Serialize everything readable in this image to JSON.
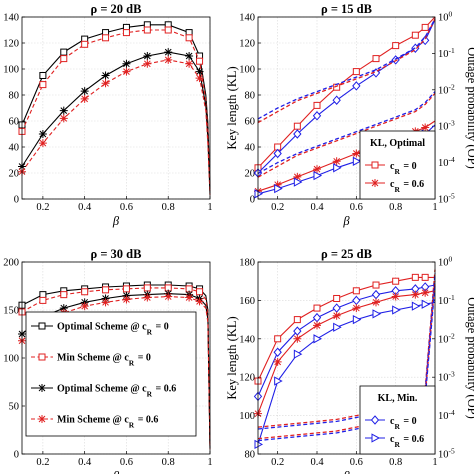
{
  "colors": {
    "black": "#000000",
    "red": "#e02020",
    "blue": "#1f1fe6"
  },
  "chart_data": [
    {
      "type": "line",
      "title": "ρ = 20 dB",
      "xlabel": "β",
      "ylabel": "",
      "xlim": [
        0.1,
        1.0
      ],
      "ylim": [
        0,
        140
      ],
      "xticks": [
        "0.2",
        "0.4",
        "0.6",
        "0.8",
        "1"
      ],
      "yticks": [
        "0",
        "20",
        "40",
        "60",
        "80",
        "100",
        "120",
        "140"
      ],
      "x": [
        0.1,
        0.2,
        0.3,
        0.4,
        0.5,
        0.6,
        0.7,
        0.8,
        0.9,
        0.95,
        0.98,
        0.99,
        1.0
      ],
      "series": [
        {
          "name": "Optimal Scheme @ cR = 0",
          "color": "#000000",
          "dash": false,
          "marker": "square",
          "values": [
            57,
            95,
            113,
            123,
            128,
            132,
            134,
            134,
            128,
            110,
            80,
            58,
            8
          ]
        },
        {
          "name": "Min Scheme @ cR = 0",
          "color": "#e02020",
          "dash": true,
          "marker": "square",
          "values": [
            52,
            88,
            108,
            119,
            124,
            128,
            130,
            130,
            124,
            106,
            76,
            54,
            6
          ]
        },
        {
          "name": "Optimal Scheme @ cR = 0.6",
          "color": "#000000",
          "dash": false,
          "marker": "star",
          "values": [
            25,
            50,
            68,
            83,
            95,
            104,
            110,
            113,
            110,
            98,
            72,
            46,
            4
          ]
        },
        {
          "name": "Min Scheme @ cR = 0.6",
          "color": "#e02020",
          "dash": true,
          "marker": "star",
          "values": [
            21,
            43,
            62,
            77,
            89,
            98,
            104,
            107,
            104,
            93,
            68,
            42,
            3
          ]
        }
      ]
    },
    {
      "type": "line",
      "title": "ρ = 15 dB",
      "xlabel": "β",
      "ylabel": "Key length (KL)",
      "ylabel_right": "Outage probability (OP)",
      "xlim": [
        0.1,
        1.0
      ],
      "ylim": [
        0,
        140
      ],
      "ylim_right_log": [
        -5,
        0
      ],
      "xticks": [
        "0.2",
        "0.4",
        "0.6",
        "0.8",
        "1"
      ],
      "yticks": [
        "0",
        "20",
        "40",
        "60",
        "80",
        "100",
        "120",
        "140"
      ],
      "yticks_right": [
        "10-5",
        "10-4",
        "10-3",
        "10-2",
        "10-1",
        "100"
      ],
      "legend": {
        "title": "KL, Optimal",
        "items": [
          "cR = 0",
          "cR = 0.6"
        ]
      },
      "x": [
        0.1,
        0.2,
        0.3,
        0.4,
        0.5,
        0.6,
        0.7,
        0.8,
        0.9,
        0.95,
        1.0
      ],
      "series": [
        {
          "name": "KL optimal cR = 0",
          "axis": "left",
          "color": "#e02020",
          "dash": false,
          "marker": "square",
          "values": [
            24,
            40,
            56,
            72,
            86,
            98,
            108,
            118,
            126,
            132,
            140
          ]
        },
        {
          "name": "KL min cR = 0",
          "axis": "left",
          "color": "#1f1fe6",
          "dash": false,
          "marker": "diamond",
          "values": [
            20,
            35,
            50,
            64,
            76,
            87,
            97,
            107,
            116,
            122,
            138
          ]
        },
        {
          "name": "KL optimal cR = 0.6",
          "axis": "left",
          "color": "#e02020",
          "dash": false,
          "marker": "star",
          "values": [
            6,
            11,
            17,
            23,
            29,
            35,
            41,
            47,
            52,
            55,
            60
          ]
        },
        {
          "name": "KL min cR = 0.6",
          "axis": "left",
          "color": "#1f1fe6",
          "dash": false,
          "marker": "triangle",
          "values": [
            4,
            8,
            13,
            18,
            24,
            29,
            35,
            41,
            47,
            50,
            57
          ]
        },
        {
          "name": "OP optimal cR = 0",
          "axis": "right",
          "color": "#e02020",
          "dash": true,
          "marker": "none",
          "values": [
            -2.9,
            -2.6,
            -2.3,
            -2.1,
            -1.9,
            -1.7,
            -1.5,
            -1.2,
            -0.9,
            -0.6,
            -0.05
          ]
        },
        {
          "name": "OP min cR = 0",
          "axis": "right",
          "color": "#1f1fe6",
          "dash": true,
          "marker": "none",
          "values": [
            -2.8,
            -2.5,
            -2.25,
            -2.05,
            -1.85,
            -1.65,
            -1.45,
            -1.15,
            -0.85,
            -0.55,
            -0.05
          ]
        },
        {
          "name": "OP optimal cR = 0.6",
          "axis": "right",
          "color": "#e02020",
          "dash": true,
          "marker": "none",
          "values": [
            -4.4,
            -4.1,
            -3.8,
            -3.6,
            -3.4,
            -3.2,
            -3.0,
            -2.8,
            -2.6,
            -2.4,
            -2.1
          ]
        },
        {
          "name": "OP min cR = 0.6",
          "axis": "right",
          "color": "#1f1fe6",
          "dash": true,
          "marker": "none",
          "values": [
            -4.3,
            -4.0,
            -3.75,
            -3.55,
            -3.35,
            -3.15,
            -2.95,
            -2.75,
            -2.55,
            -2.35,
            -2.05
          ]
        }
      ]
    },
    {
      "type": "line",
      "title": "ρ = 30 dB",
      "xlabel": "β",
      "ylabel": "",
      "xlim": [
        0.1,
        1.0
      ],
      "ylim": [
        0,
        200
      ],
      "xticks": [
        "0.2",
        "0.4",
        "0.6",
        "0.8",
        "1"
      ],
      "yticks": [
        "0",
        "50",
        "100",
        "150",
        "200"
      ],
      "legend": {
        "items": [
          "Optimal Scheme @ c_R = 0",
          "Min Scheme @ c_R = 0",
          "Optimal Scheme @ c_R = 0.6",
          "Min Scheme @ c_R = 0.6"
        ]
      },
      "x": [
        0.1,
        0.2,
        0.3,
        0.4,
        0.5,
        0.6,
        0.7,
        0.8,
        0.9,
        0.95,
        0.98,
        0.99,
        1.0
      ],
      "series": [
        {
          "name": "Optimal Scheme @ cR = 0",
          "color": "#000000",
          "dash": false,
          "marker": "square",
          "values": [
            155,
            166,
            170,
            172,
            174,
            175,
            176,
            176,
            175,
            172,
            165,
            150,
            10
          ]
        },
        {
          "name": "Min Scheme @ cR = 0",
          "color": "#e02020",
          "dash": true,
          "marker": "square",
          "values": [
            148,
            160,
            166,
            169,
            171,
            172,
            173,
            173,
            172,
            169,
            161,
            146,
            8
          ]
        },
        {
          "name": "Optimal Scheme @ cR = 0.6",
          "color": "#000000",
          "dash": false,
          "marker": "star",
          "values": [
            125,
            143,
            152,
            158,
            162,
            165,
            166,
            167,
            166,
            162,
            155,
            140,
            6
          ]
        },
        {
          "name": "Min Scheme @ cR = 0.6",
          "color": "#e02020",
          "dash": true,
          "marker": "star",
          "values": [
            118,
            137,
            147,
            154,
            158,
            161,
            163,
            164,
            163,
            159,
            152,
            137,
            5
          ]
        }
      ]
    },
    {
      "type": "line",
      "title": "ρ = 25 dB",
      "xlabel": "β",
      "ylabel": "Key length (KL)",
      "ylabel_right": "Outage probability (OP)",
      "xlim": [
        0.1,
        1.0
      ],
      "ylim": [
        80,
        180
      ],
      "ylim_right_log": [
        -5,
        0
      ],
      "xticks": [
        "0.2",
        "0.4",
        "0.6",
        "0.8",
        "1"
      ],
      "yticks": [
        "80",
        "100",
        "120",
        "140",
        "160",
        "180"
      ],
      "yticks_right": [
        "10-5",
        "10-4",
        "10-3",
        "10-2",
        "10-1",
        "100"
      ],
      "legend": {
        "title": "KL, Min.",
        "items": [
          "cR = 0",
          "cR = 0.6"
        ]
      },
      "x": [
        0.1,
        0.2,
        0.3,
        0.4,
        0.5,
        0.6,
        0.7,
        0.8,
        0.9,
        0.95,
        1.0
      ],
      "series": [
        {
          "name": "KL optimal cR = 0",
          "axis": "left",
          "color": "#e02020",
          "dash": false,
          "marker": "square",
          "values": [
            118,
            140,
            150,
            156,
            161,
            165,
            168,
            170,
            172,
            172,
            172
          ]
        },
        {
          "name": "KL min cR = 0",
          "axis": "left",
          "color": "#1f1fe6",
          "dash": false,
          "marker": "diamond",
          "values": [
            110,
            133,
            144,
            151,
            156,
            160,
            163,
            165,
            166,
            167,
            168
          ]
        },
        {
          "name": "KL optimal cR = 0.6",
          "axis": "left",
          "color": "#e02020",
          "dash": false,
          "marker": "star",
          "values": [
            101,
            128,
            140,
            147,
            152,
            156,
            159,
            162,
            163,
            164,
            165
          ]
        },
        {
          "name": "KL min cR = 0.6",
          "axis": "left",
          "color": "#1f1fe6",
          "dash": false,
          "marker": "triangle",
          "values": [
            85,
            118,
            132,
            140,
            146,
            150,
            153,
            155,
            157,
            158,
            159
          ]
        },
        {
          "name": "OP optimal cR = 0",
          "axis": "right",
          "color": "#e02020",
          "dash": true,
          "marker": "none",
          "values": [
            -4.3,
            -4.25,
            -4.2,
            -4.15,
            -4.1,
            -4.0,
            -3.9,
            -3.8,
            -3.6,
            -3.3,
            -0.2
          ]
        },
        {
          "name": "OP min cR = 0",
          "axis": "right",
          "color": "#1f1fe6",
          "dash": true,
          "marker": "none",
          "values": [
            -4.35,
            -4.3,
            -4.25,
            -4.2,
            -4.15,
            -4.05,
            -3.95,
            -3.85,
            -3.65,
            -3.35,
            -0.3
          ]
        },
        {
          "name": "OP optimal cR = 0.6",
          "axis": "right",
          "color": "#e02020",
          "dash": true,
          "marker": "none",
          "values": [
            -4.6,
            -4.55,
            -4.5,
            -4.45,
            -4.4,
            -4.3,
            -4.2,
            -4.05,
            -3.85,
            -3.5,
            -0.5
          ]
        },
        {
          "name": "OP min cR = 0.6",
          "axis": "right",
          "color": "#1f1fe6",
          "dash": true,
          "marker": "none",
          "values": [
            -4.65,
            -4.6,
            -4.55,
            -4.5,
            -4.45,
            -4.35,
            -4.25,
            -4.1,
            -3.9,
            -3.55,
            -0.6
          ]
        }
      ]
    }
  ]
}
